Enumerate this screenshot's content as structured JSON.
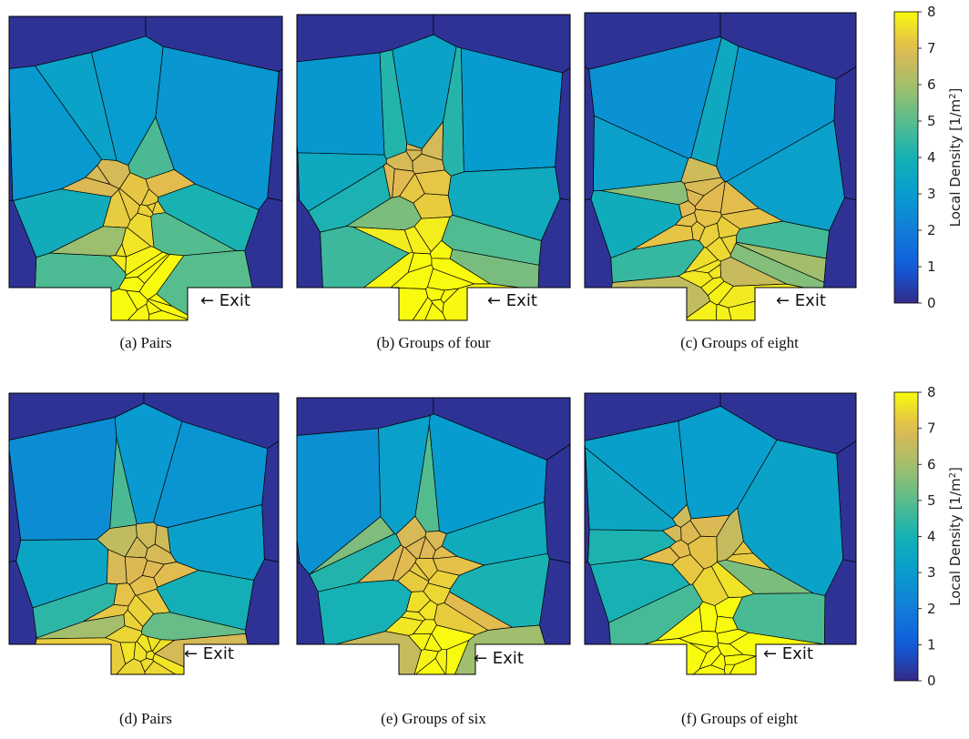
{
  "panels": [
    {
      "id": "a",
      "caption": "(a)  Pairs",
      "exit_label": "← Exit",
      "seed": 11,
      "hot": 0.85
    },
    {
      "id": "b",
      "caption": "(b)  Groups of four",
      "exit_label": "← Exit",
      "seed": 23,
      "hot": 0.9
    },
    {
      "id": "c",
      "caption": "(c)  Groups of eight",
      "exit_label": "← Exit",
      "seed": 37,
      "hot": 0.75
    },
    {
      "id": "d",
      "caption": "(d)  Pairs",
      "exit_label": "← Exit",
      "seed": 41,
      "hot": 0.7
    },
    {
      "id": "e",
      "caption": "(e)  Groups of six",
      "exit_label": "← Exit",
      "seed": 53,
      "hot": 0.8
    },
    {
      "id": "f",
      "caption": "(f)  Groups of eight",
      "exit_label": "← Exit",
      "seed": 67,
      "hot": 0.9
    }
  ],
  "colorbar": {
    "title": "Local Density [1/m",
    "title_sup": "2",
    "title_end": "]",
    "min": 0,
    "max": 8,
    "ticks": [
      "0",
      "1",
      "2",
      "3",
      "4",
      "5",
      "6",
      "7",
      "8"
    ]
  },
  "colors": {
    "background_cell": "#352a87",
    "edge": "#000000"
  }
}
